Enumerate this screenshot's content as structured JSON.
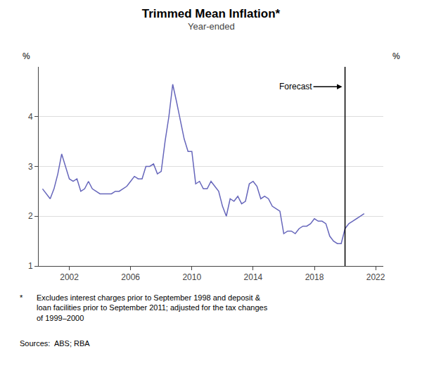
{
  "chart_data": {
    "type": "line",
    "title": "Trimmed Mean Inflation*",
    "subtitle": "Year-ended",
    "y_label": "%",
    "y2_label": "%",
    "color": "#6666bb",
    "grid": true,
    "xlim": [
      2000.0,
      2022.5
    ],
    "xticks": [
      2002,
      2006,
      2010,
      2014,
      2018,
      2022
    ],
    "ylim": [
      1,
      5
    ],
    "yticks": [
      1,
      2,
      3,
      4
    ],
    "y2lim": [
      1,
      5
    ],
    "y2ticks": [
      1,
      2,
      3,
      4
    ],
    "annotations": [
      {
        "text": "Forecast",
        "x": 2020.0
      }
    ],
    "footnote": {
      "symbol": "*",
      "text": "Excludes interest charges prior to September 1998 and deposit &\nloan facilities prior to September 2011; adjusted for the tax changes\nof 1999–2000"
    },
    "sources": "Sources:  ABS; RBA",
    "x": [
      2000.25,
      2000.5,
      2000.75,
      2001.0,
      2001.25,
      2001.5,
      2001.75,
      2002.0,
      2002.25,
      2002.5,
      2002.75,
      2003.0,
      2003.25,
      2003.5,
      2003.75,
      2004.0,
      2004.25,
      2004.5,
      2004.75,
      2005.0,
      2005.25,
      2005.5,
      2005.75,
      2006.0,
      2006.25,
      2006.5,
      2006.75,
      2007.0,
      2007.25,
      2007.5,
      2007.75,
      2008.0,
      2008.25,
      2008.5,
      2008.75,
      2009.0,
      2009.25,
      2009.5,
      2009.75,
      2010.0,
      2010.25,
      2010.5,
      2010.75,
      2011.0,
      2011.25,
      2011.5,
      2011.75,
      2012.0,
      2012.25,
      2012.5,
      2012.75,
      2013.0,
      2013.25,
      2013.5,
      2013.75,
      2014.0,
      2014.25,
      2014.5,
      2014.75,
      2015.0,
      2015.25,
      2015.5,
      2015.75,
      2016.0,
      2016.25,
      2016.5,
      2016.75,
      2017.0,
      2017.25,
      2017.5,
      2017.75,
      2018.0,
      2018.25,
      2018.5,
      2018.75,
      2019.0,
      2019.25,
      2019.5,
      2019.75,
      2020.0,
      2020.25,
      2020.5,
      2020.75,
      2021.0,
      2021.25
    ],
    "values": [
      2.55,
      2.45,
      2.35,
      2.55,
      2.85,
      3.25,
      3.0,
      2.75,
      2.7,
      2.75,
      2.5,
      2.55,
      2.7,
      2.55,
      2.5,
      2.45,
      2.45,
      2.45,
      2.45,
      2.5,
      2.5,
      2.55,
      2.6,
      2.7,
      2.8,
      2.75,
      2.75,
      3.0,
      3.0,
      3.05,
      2.85,
      2.9,
      3.5,
      4.0,
      4.65,
      4.3,
      3.95,
      3.55,
      3.3,
      3.3,
      2.65,
      2.7,
      2.55,
      2.55,
      2.7,
      2.6,
      2.5,
      2.2,
      2.0,
      2.35,
      2.3,
      2.4,
      2.25,
      2.3,
      2.65,
      2.7,
      2.6,
      2.35,
      2.4,
      2.35,
      2.2,
      2.15,
      2.1,
      1.65,
      1.7,
      1.7,
      1.65,
      1.75,
      1.8,
      1.8,
      1.85,
      1.95,
      1.9,
      1.9,
      1.85,
      1.6,
      1.5,
      1.45,
      1.45,
      1.75,
      1.85,
      1.9,
      1.95,
      2.0,
      2.05
    ]
  }
}
